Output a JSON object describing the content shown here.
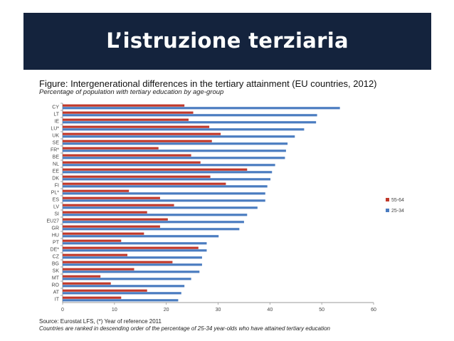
{
  "slide": {
    "title": "L’istruzione terziaria",
    "banner_color": "#14233d"
  },
  "figure": {
    "title": "Figure: Intergenerational differences in the tertiary attainment (EU countries, 2012)",
    "subtitle": "Percentage of population with tertiary education by age-group",
    "source": "Source: Eurostat LFS, (*) Year of reference 2011",
    "note": "Countries are ranked in descending order of the percentage of 25-34 year-olds who have attained tertiary education"
  },
  "chart_data": {
    "type": "bar",
    "orientation": "horizontal",
    "categories": [
      "CY",
      "LT",
      "IE",
      "LU*",
      "UK",
      "SE",
      "FR*",
      "BE",
      "NL",
      "EE",
      "DK",
      "FI",
      "PL*",
      "ES",
      "LV",
      "SI",
      "EU27",
      "GR",
      "HU",
      "PT",
      "DE*",
      "CZ",
      "BG",
      "SK",
      "MT",
      "RO",
      "AT",
      "IT"
    ],
    "series": [
      {
        "name": "55-64",
        "color": "#c0392b",
        "values": [
          23.5,
          25.2,
          24.3,
          28.3,
          30.5,
          28.8,
          18.5,
          24.8,
          26.6,
          35.6,
          28.5,
          31.5,
          12.8,
          18.8,
          21.5,
          16.3,
          20.3,
          18.8,
          15.7,
          11.3,
          26.2,
          12.5,
          21.2,
          13.8,
          7.3,
          9.3,
          16.3,
          11.3
        ]
      },
      {
        "name": "25-34",
        "color": "#4a7cc0",
        "values": [
          53.5,
          49.1,
          48.9,
          46.6,
          44.8,
          43.4,
          43.1,
          42.9,
          41.0,
          40.4,
          40.1,
          39.5,
          39.1,
          39.1,
          37.6,
          35.6,
          35.0,
          34.1,
          30.1,
          27.8,
          27.8,
          26.9,
          26.9,
          26.4,
          24.8,
          23.5,
          22.9,
          22.3
        ]
      }
    ],
    "xlim": [
      0,
      60
    ],
    "xticks": [
      0,
      10,
      20,
      30,
      40,
      50,
      60
    ],
    "grid": false,
    "legend_position": "right"
  }
}
